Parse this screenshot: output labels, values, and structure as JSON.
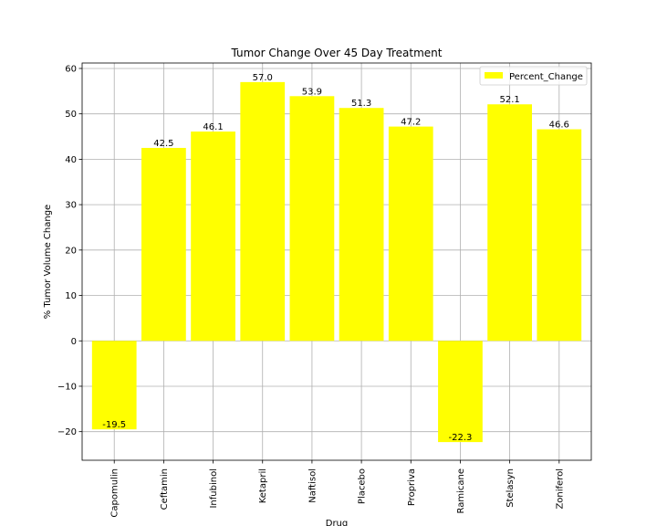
{
  "chart_data": {
    "type": "bar",
    "title": "Tumor Change Over 45 Day Treatment",
    "xlabel": "Drug",
    "ylabel": "% Tumor Volume Change",
    "categories": [
      "Capomulin",
      "Ceftamin",
      "Infubinol",
      "Ketapril",
      "Naftisol",
      "Placebo",
      "Propriva",
      "Ramicane",
      "Stelasyn",
      "Zoniferol"
    ],
    "series": [
      {
        "name": "Percent_Change",
        "values": [
          -19.5,
          42.5,
          46.1,
          57.0,
          53.9,
          51.3,
          47.2,
          -22.3,
          52.1,
          46.6
        ],
        "labels": [
          "-19.5",
          "42.5",
          "46.1",
          "57.0",
          "53.9",
          "51.3",
          "47.2",
          "-22.3",
          "52.1",
          "46.6"
        ]
      }
    ],
    "ylim": [
      -26.3,
      61.2
    ],
    "yticks": [
      -20,
      -10,
      0,
      10,
      20,
      30,
      40,
      50,
      60
    ],
    "ytick_labels": [
      "−20",
      "−10",
      "0",
      "10",
      "20",
      "30",
      "40",
      "50",
      "60"
    ],
    "grid": true,
    "legend_position": "top-right",
    "bar_color": "#ffff00"
  }
}
